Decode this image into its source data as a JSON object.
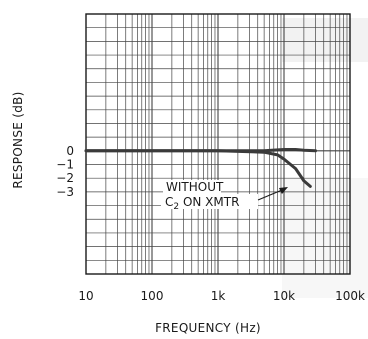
{
  "chart_data": {
    "type": "line",
    "title": "",
    "xlabel": "FREQUENCY (Hz)",
    "ylabel": "RESPONSE (dB)",
    "xscale": "log",
    "xlim": [
      10,
      100000
    ],
    "ylim": [
      -9,
      10
    ],
    "grid": true,
    "x_ticks": [
      "10",
      "100",
      "1k",
      "10k",
      "100k"
    ],
    "y_ticks": [
      "0",
      "−1",
      "−2",
      "−3"
    ],
    "series": [
      {
        "x": [
          10,
          100,
          1000,
          5000,
          10000,
          15000,
          20000,
          30000
        ],
        "y": [
          0,
          0,
          0,
          0,
          0.1,
          0.1,
          0.05,
          0
        ]
      },
      {
        "x": [
          10,
          100,
          1000,
          5000,
          8000,
          10000,
          15000,
          20000,
          25000
        ],
        "y": [
          0,
          0,
          0,
          -0.1,
          -0.3,
          -0.6,
          -1.3,
          -2.2,
          -2.6
        ]
      }
    ],
    "annotation": {
      "line1": "WITHOUT",
      "line2_main": "C",
      "line2_sub": "2",
      "line2_rest": " ON XMTR"
    },
    "colors": {
      "curve": "#3a3a3a",
      "grid": "#444444",
      "background": "#ffffff"
    }
  }
}
